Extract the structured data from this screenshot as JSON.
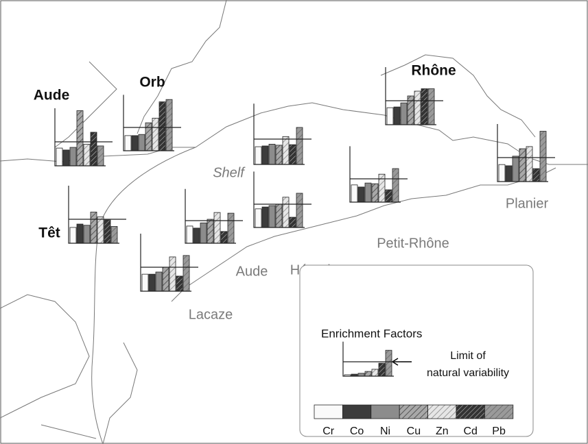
{
  "charts": [
    {
      "label": "Aude",
      "values": [
        0.74,
        0.66,
        0.77,
        2.3,
        0.9,
        1.4,
        0.83
      ]
    },
    {
      "label": "Orb",
      "values": [
        0.65,
        0.65,
        0.7,
        1.2,
        1.4,
        2.1,
        2.2
      ]
    },
    {
      "label": "Rhône",
      "values": [
        0.71,
        0.74,
        0.91,
        1.2,
        1.4,
        1.5,
        1.5
      ]
    },
    {
      "label": "Shelf",
      "values": [
        0.7,
        0.73,
        0.8,
        0.76,
        1.1,
        0.78,
        1.46
      ]
    },
    {
      "label": "Planier",
      "values": [
        0.71,
        0.66,
        1.06,
        1.37,
        1.46,
        0.54,
        2.1
      ]
    },
    {
      "label": "Petit-Rhône",
      "values": [
        0.74,
        0.65,
        0.82,
        0.79,
        1.2,
        0.53,
        1.44
      ]
    },
    {
      "label": "Têt",
      "values": [
        0.66,
        0.8,
        0.75,
        1.3,
        1.1,
        0.97,
        0.7
      ]
    },
    {
      "label": "Hérault",
      "values": [
        0.8,
        0.88,
        0.94,
        1.0,
        1.3,
        0.44,
        1.47
      ]
    },
    {
      "label": "Aude",
      "values": [
        0.76,
        0.67,
        0.9,
        1.06,
        1.36,
        0.52,
        1.33
      ]
    },
    {
      "label": "Lacaze",
      "values": [
        0.71,
        0.71,
        0.8,
        1.0,
        1.43,
        0.63,
        1.49
      ]
    }
  ],
  "limit": 1,
  "legend": {
    "title": "Enrichment Factors",
    "limit_label": [
      "Limit of",
      "natural variability"
    ],
    "example_values": [
      0.1,
      0.14,
      0.2,
      0.33,
      0.48,
      0.9,
      1.8
    ],
    "elements": [
      "Cr",
      "Co",
      "Ni",
      "Cu",
      "Zn",
      "Cd",
      "Pb"
    ]
  }
}
